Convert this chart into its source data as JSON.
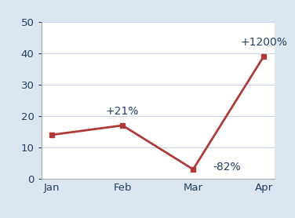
{
  "categories": [
    "Jan",
    "Feb",
    "Mar",
    "Apr"
  ],
  "values": [
    14,
    17,
    3,
    39
  ],
  "labels": [
    null,
    "+21%",
    "-82%",
    "+1200%"
  ],
  "line_color": "#b03a3a",
  "marker_style": "s",
  "marker_size": 5,
  "ylim": [
    0,
    50
  ],
  "yticks": [
    0,
    10,
    20,
    30,
    40,
    50
  ],
  "outer_bg_color": "#dce6f1",
  "inner_bg_color": "#f2f7ff",
  "plot_bg_color": "#ffffff",
  "label_fontsize": 10,
  "tick_fontsize": 9.5,
  "label_color": "#243f60",
  "tick_color": "#243f60",
  "grid_color": "#c8d4e8",
  "spine_color": "#aaaaaa"
}
